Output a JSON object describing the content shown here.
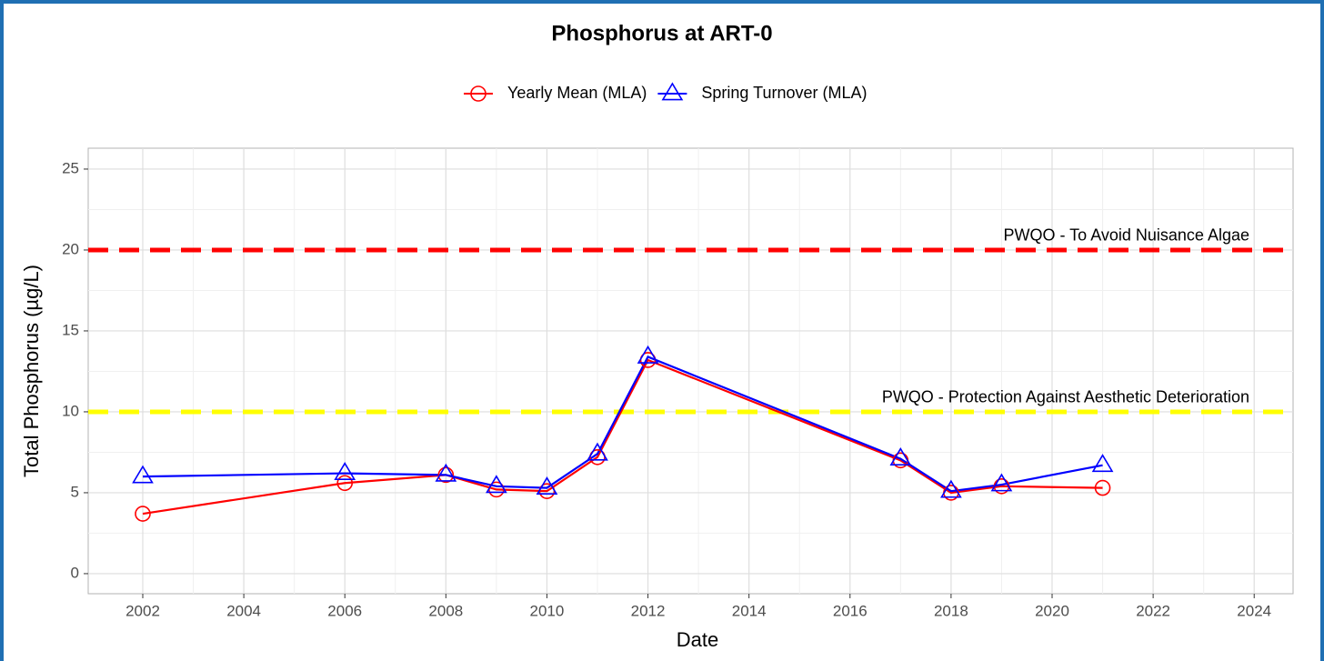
{
  "chart_data": {
    "type": "line",
    "title": "Phosphorus at ART-0",
    "x_label": "Date",
    "y_label": "Total Phosphorus (µg/L)",
    "x": [
      2002,
      2006,
      2008,
      2009,
      2010,
      2011,
      2012,
      2017,
      2018,
      2019,
      2021
    ],
    "series": [
      {
        "name": "Yearly Mean (MLA)",
        "color": "#ff0000",
        "marker": "circle",
        "values": [
          3.7,
          5.6,
          6.1,
          5.2,
          5.1,
          7.2,
          13.2,
          7.0,
          5.0,
          5.4,
          5.3
        ]
      },
      {
        "name": "Spring Turnover (MLA)",
        "color": "#0000ff",
        "marker": "triangle",
        "values": [
          6.0,
          6.2,
          6.1,
          5.4,
          5.3,
          7.4,
          13.4,
          7.1,
          5.1,
          5.5,
          6.7
        ]
      }
    ],
    "reference_lines": [
      {
        "value": 20,
        "label": "PWQO - To Avoid Nuisance Algae",
        "color": "#ff0000"
      },
      {
        "value": 10,
        "label": "PWQO - Protection Against Aesthetic Deterioration",
        "color": "#ffff00"
      }
    ],
    "xlim": [
      2000.92,
      2024.77
    ],
    "xticks": [
      2002,
      2004,
      2006,
      2008,
      2010,
      2012,
      2014,
      2016,
      2018,
      2020,
      2022,
      2024
    ],
    "ylim": [
      -1.24,
      26.29
    ],
    "yticks": [
      0,
      5,
      10,
      15,
      20,
      25
    ],
    "grid": true,
    "legend": "top"
  }
}
